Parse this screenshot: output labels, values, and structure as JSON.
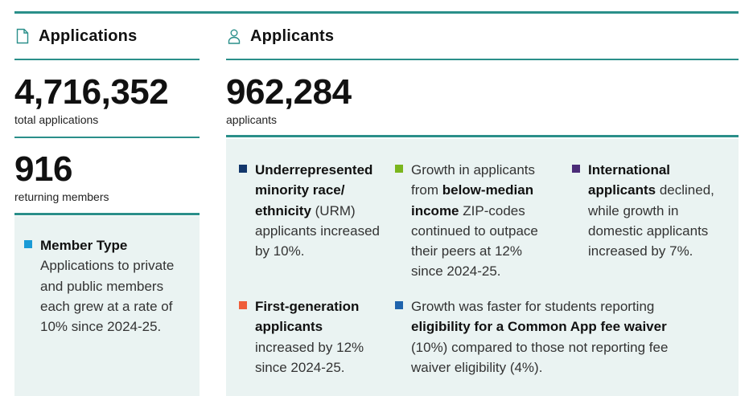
{
  "applications": {
    "title": "Applications",
    "total_value": "4,716,352",
    "total_label": "total applications",
    "returning_value": "916",
    "returning_label": "returning members",
    "member_type": {
      "heading": "Member Type",
      "text": "Applications to private and public members each grew at a rate of 10% since 2024-25.",
      "color": "#1a9ad6"
    }
  },
  "applicants": {
    "title": "Applicants",
    "value": "962,284",
    "label": "applicants",
    "bullets": {
      "urm": {
        "bold": "Underrepresented minority race/ ethnicity",
        "rest": " (URM) applicants increased by 10%.",
        "color": "#12366b"
      },
      "below_median": {
        "pre": "Growth in applicants from ",
        "bold": "below-median income",
        "rest": " ZIP-codes continued to outpace their peers at 12% since 2024-25.",
        "color": "#7ab51d"
      },
      "international": {
        "bold": "International applicants",
        "rest": " declined, while growth in domestic applicants increased by 7%.",
        "color": "#4b2c78"
      },
      "first_gen": {
        "bold": "First-generation applicants",
        "rest": " increased by 12% since 2024-25.",
        "color": "#ef5d3a"
      },
      "fee_waiver": {
        "pre": "Growth was faster for students reporting ",
        "bold": "eligibility for a Common App fee waiver",
        "rest": " (10%) compared to those not reporting fee waiver eligibility (4%).",
        "color": "#1f63ad"
      }
    }
  },
  "colors": {
    "accent": "#2a8f8a",
    "panel": "#eaf3f2"
  }
}
